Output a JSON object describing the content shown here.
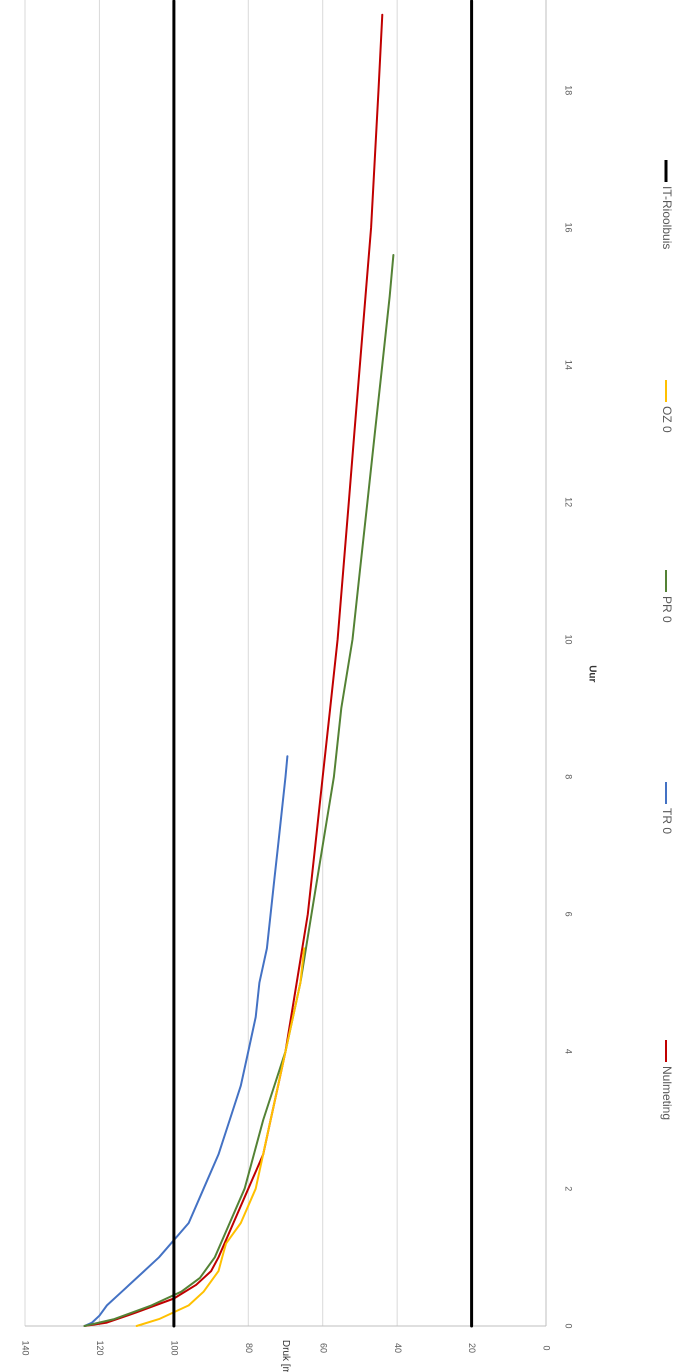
{
  "chart_data": {
    "type": "line",
    "orientation": "rotated-90-clockwise",
    "title": "",
    "xlabel": "Uur",
    "ylabel": "Druk [mbar]",
    "xlim": [
      0,
      19
    ],
    "ylim": [
      0,
      140
    ],
    "x_ticks": [
      0,
      2,
      4,
      6,
      8,
      10,
      12,
      14,
      16,
      18
    ],
    "y_ticks": [
      0,
      20,
      40,
      60,
      80,
      100,
      120,
      140
    ],
    "grid": "horizontal",
    "legend_position": "bottom",
    "series": [
      {
        "name": "Nulmeting",
        "color": "#c00000",
        "points": [
          [
            0,
            124
          ],
          [
            0.05,
            118
          ],
          [
            0.2,
            110
          ],
          [
            0.4,
            100
          ],
          [
            0.6,
            94
          ],
          [
            0.8,
            90
          ],
          [
            1,
            88
          ],
          [
            1.5,
            84
          ],
          [
            2,
            80
          ],
          [
            2.5,
            76
          ],
          [
            3,
            74
          ],
          [
            3.5,
            72
          ],
          [
            4,
            70
          ],
          [
            5,
            67
          ],
          [
            6,
            64
          ],
          [
            7,
            62
          ],
          [
            8,
            60
          ],
          [
            9,
            58
          ],
          [
            10,
            56
          ],
          [
            11,
            54.5
          ],
          [
            12,
            53
          ],
          [
            13,
            51.5
          ],
          [
            14,
            50
          ],
          [
            15,
            48.5
          ],
          [
            16,
            47
          ],
          [
            17,
            46
          ],
          [
            18,
            45
          ],
          [
            19.1,
            44
          ]
        ]
      },
      {
        "name": "TR 0",
        "color": "#4472c4",
        "points": [
          [
            0,
            124
          ],
          [
            0.05,
            122
          ],
          [
            0.15,
            120
          ],
          [
            0.3,
            118
          ],
          [
            0.5,
            114
          ],
          [
            0.8,
            108
          ],
          [
            1,
            104
          ],
          [
            1.5,
            96
          ],
          [
            2,
            92
          ],
          [
            2.5,
            88
          ],
          [
            3,
            85
          ],
          [
            3.5,
            82
          ],
          [
            4,
            80
          ],
          [
            4.5,
            78
          ],
          [
            5,
            77
          ],
          [
            5.5,
            75
          ],
          [
            6,
            74
          ],
          [
            6.5,
            73
          ],
          [
            7,
            72
          ],
          [
            7.5,
            71
          ],
          [
            8,
            70
          ],
          [
            8.3,
            69.5
          ]
        ]
      },
      {
        "name": "PR 0",
        "color": "#548235",
        "points": [
          [
            0,
            124
          ],
          [
            0.1,
            116
          ],
          [
            0.3,
            106
          ],
          [
            0.5,
            98
          ],
          [
            0.7,
            93
          ],
          [
            1,
            89
          ],
          [
            1.5,
            85
          ],
          [
            2,
            81
          ],
          [
            3,
            76
          ],
          [
            4,
            70
          ],
          [
            5,
            66
          ],
          [
            6,
            63
          ],
          [
            7,
            60
          ],
          [
            8,
            57
          ],
          [
            9,
            55
          ],
          [
            10,
            52
          ],
          [
            11,
            50
          ],
          [
            12,
            48
          ],
          [
            13,
            46
          ],
          [
            14,
            44
          ],
          [
            15,
            42
          ],
          [
            15.6,
            41
          ]
        ]
      },
      {
        "name": "OZ 0",
        "color": "#ffc000",
        "points": [
          [
            0,
            110
          ],
          [
            0.1,
            104
          ],
          [
            0.3,
            96
          ],
          [
            0.5,
            92
          ],
          [
            0.8,
            88
          ],
          [
            1,
            87
          ],
          [
            1.2,
            86
          ],
          [
            1.5,
            82
          ],
          [
            2,
            78
          ],
          [
            3,
            74
          ],
          [
            4,
            70
          ],
          [
            5,
            66
          ],
          [
            5.5,
            65
          ]
        ]
      },
      {
        "name": "IT-Rioolbuis",
        "color": "#000000",
        "points": [
          [
            0,
            100
          ],
          [
            19.3,
            100
          ]
        ]
      },
      {
        "name": "IT-Rioolbuis",
        "color": "#000000",
        "points": [
          [
            0,
            20
          ],
          [
            19.3,
            20
          ]
        ]
      }
    ],
    "legend": [
      "Nulmeting",
      "TR 0",
      "PR 0",
      "OZ 0",
      "IT-Rioolbuis"
    ]
  }
}
